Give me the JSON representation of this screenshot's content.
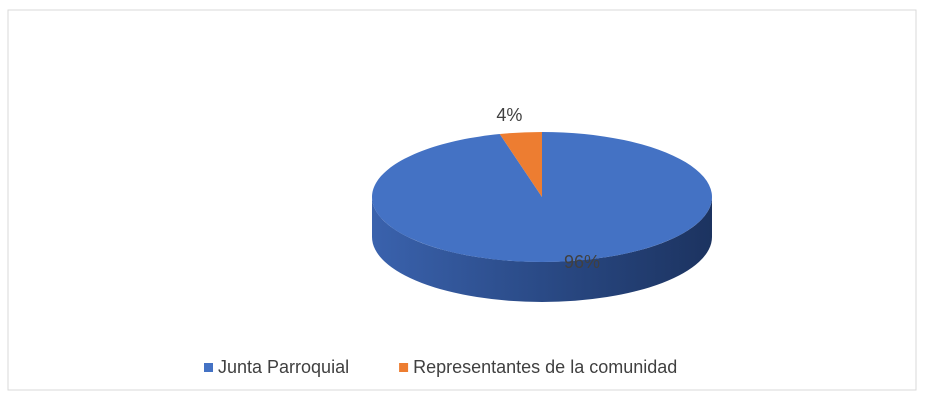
{
  "chart_data": {
    "type": "pie",
    "categories": [
      "Junta Parroquial",
      "Representantes de la comunidad"
    ],
    "values": [
      96,
      4
    ],
    "value_labels": [
      "96%",
      "4%"
    ],
    "colors": [
      "#4472c4",
      "#ed7d31"
    ],
    "legend": "bottom"
  }
}
